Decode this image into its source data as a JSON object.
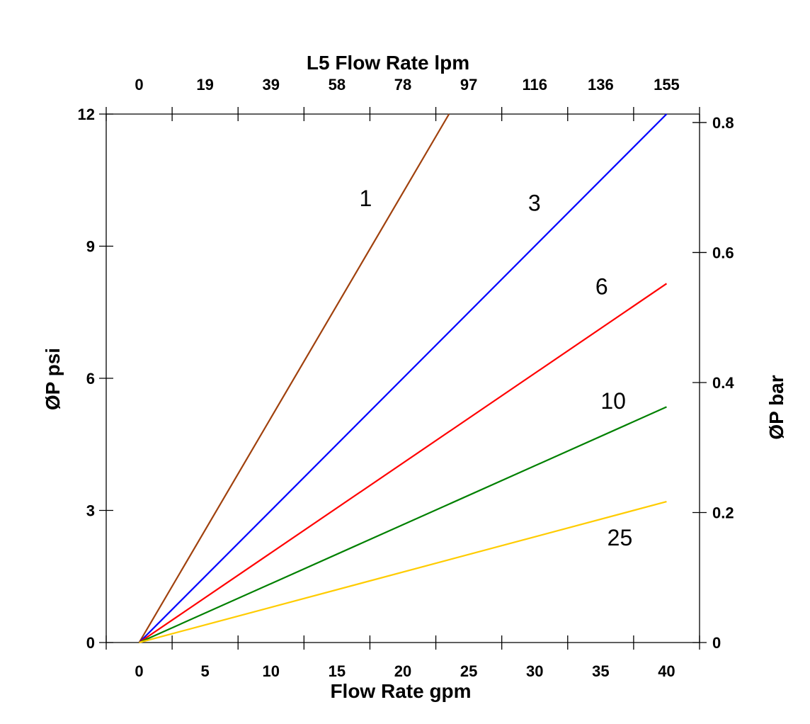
{
  "chart_data": {
    "type": "line",
    "title": "",
    "xlabel": "Flow Rate gpm",
    "x2label": "L5 Flow Rate lpm",
    "ylabel": "ØP psi",
    "y2label": "ØP bar",
    "xlim": [
      -2.5,
      42.5
    ],
    "ylim": [
      0,
      12
    ],
    "y2lim": [
      0,
      0.813
    ],
    "grid": false,
    "legend": "none (series labelled inline)",
    "x_ticks": [
      "0",
      "5",
      "10",
      "15",
      "20",
      "25",
      "30",
      "35",
      "40"
    ],
    "x2_ticks": [
      "0",
      "19",
      "39",
      "58",
      "78",
      "97",
      "116",
      "136",
      "155"
    ],
    "y_ticks": [
      "0",
      "3",
      "6",
      "9",
      "12"
    ],
    "y2_ticks": [
      "0",
      "0.2",
      "0.4",
      "0.6",
      "0.8"
    ],
    "series": [
      {
        "name": "1",
        "color": "#A0410D",
        "x": [
          0,
          23.5
        ],
        "y": [
          0,
          12
        ]
      },
      {
        "name": "3",
        "color": "#0000FF",
        "x": [
          0,
          40
        ],
        "y": [
          0,
          12
        ]
      },
      {
        "name": "6",
        "color": "#FF0000",
        "x": [
          0,
          40
        ],
        "y": [
          0,
          8.15
        ]
      },
      {
        "name": "10",
        "color": "#008000",
        "x": [
          0,
          40
        ],
        "y": [
          0,
          5.35
        ]
      },
      {
        "name": "25",
        "color": "#FFCC00",
        "x": [
          0,
          40
        ],
        "y": [
          0,
          3.2
        ]
      }
    ]
  }
}
